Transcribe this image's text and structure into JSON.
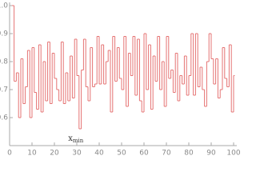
{
  "chart_data": {
    "type": "step",
    "x": [
      1,
      2,
      3,
      4,
      5,
      6,
      7,
      8,
      9,
      10,
      11,
      12,
      13,
      14,
      15,
      16,
      17,
      18,
      19,
      20,
      21,
      22,
      23,
      24,
      25,
      26,
      27,
      28,
      29,
      30,
      31,
      32,
      33,
      34,
      35,
      36,
      37,
      38,
      39,
      40,
      41,
      42,
      43,
      44,
      45,
      46,
      47,
      48,
      49,
      50,
      51,
      52,
      53,
      54,
      55,
      56,
      57,
      58,
      59,
      60,
      61,
      62,
      63,
      64,
      65,
      66,
      67,
      68,
      69,
      70,
      71,
      72,
      73,
      74,
      75,
      76,
      77,
      78,
      79,
      80,
      81,
      82,
      83,
      84,
      85,
      86,
      87,
      88,
      89,
      90,
      91,
      92,
      93,
      94,
      95,
      96,
      97,
      98,
      99,
      100
    ],
    "values": [
      1.0,
      0.73,
      0.76,
      0.6,
      0.81,
      0.65,
      0.71,
      0.84,
      0.6,
      0.85,
      0.69,
      0.63,
      0.86,
      0.62,
      0.8,
      0.66,
      0.87,
      0.65,
      0.83,
      0.74,
      0.7,
      0.66,
      0.87,
      0.65,
      0.76,
      0.66,
      0.82,
      0.67,
      0.88,
      0.75,
      0.56,
      0.77,
      0.88,
      0.71,
      0.66,
      0.85,
      0.71,
      0.72,
      0.89,
      0.72,
      0.86,
      0.72,
      0.8,
      0.84,
      0.62,
      0.89,
      0.73,
      0.85,
      0.74,
      0.7,
      0.89,
      0.64,
      0.83,
      0.75,
      0.89,
      0.68,
      0.88,
      0.66,
      0.62,
      0.9,
      0.7,
      0.86,
      0.63,
      0.82,
      0.73,
      0.89,
      0.7,
      0.8,
      0.64,
      0.89,
      0.74,
      0.77,
      0.69,
      0.83,
      0.66,
      0.75,
      0.72,
      0.82,
      0.68,
      0.75,
      0.9,
      0.68,
      0.9,
      0.71,
      0.78,
      0.7,
      0.64,
      0.8,
      0.9,
      0.81,
      0.72,
      0.81,
      0.67,
      0.7,
      0.85,
      0.74,
      0.71,
      0.86,
      0.62,
      0.75
    ],
    "color": "#e57373",
    "xlim": [
      0,
      100
    ],
    "ylim": [
      0.5,
      1.0
    ],
    "xticks": [
      0,
      10,
      20,
      30,
      40,
      50,
      60,
      70,
      80,
      90,
      100
    ],
    "yticks": [
      0.6,
      0.7,
      0.8,
      0.9,
      {
        "value": 1.0,
        "label": "1.0"
      }
    ],
    "annotation": {
      "text": "x",
      "subscript": "min",
      "x": 31,
      "y": 0.56
    }
  }
}
